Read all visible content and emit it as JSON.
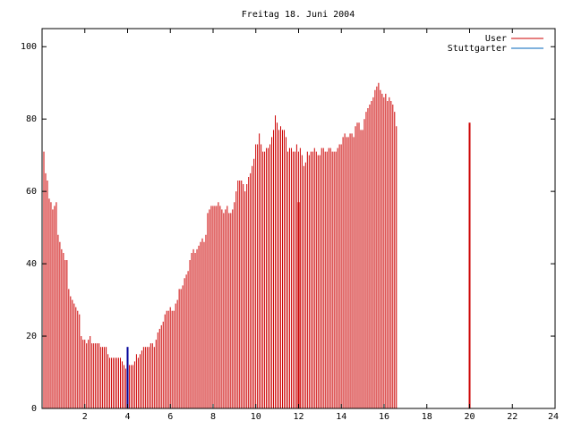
{
  "chart_data": {
    "type": "bar",
    "title": "Freitag 18. Juni 2004",
    "xlabel": "",
    "ylabel": "",
    "xlim": [
      0,
      24
    ],
    "ylim": [
      0,
      105
    ],
    "xticks": [
      2,
      4,
      6,
      8,
      10,
      12,
      14,
      16,
      18,
      20,
      22,
      24
    ],
    "xtick_labels": [
      "2",
      "4",
      "6",
      "8",
      "10",
      "12",
      "14",
      "16",
      "18",
      "20",
      "22",
      "24"
    ],
    "yticks": [
      0,
      20,
      40,
      60,
      80,
      100
    ],
    "ytick_labels": [
      "0",
      "20",
      "40",
      "60",
      "80",
      "100"
    ],
    "grid": false,
    "legend_position": "top-right",
    "series": [
      {
        "name": "User",
        "color": "#cc0000",
        "style": "impulses",
        "x_start": 0,
        "x_step": 0.0833,
        "values": [
          73,
          71,
          65,
          63,
          58,
          57,
          55,
          56,
          57,
          48,
          46,
          44,
          43,
          41,
          41,
          33,
          31,
          30,
          29,
          28,
          27,
          26,
          20,
          19,
          19,
          18,
          19,
          20,
          18,
          18,
          18,
          18,
          18,
          17,
          17,
          17,
          17,
          15,
          14,
          14,
          14,
          14,
          14,
          14,
          14,
          13,
          12,
          11,
          12,
          12,
          12,
          12,
          13,
          15,
          14,
          15,
          16,
          17,
          17,
          17,
          17,
          18,
          18,
          17,
          19,
          21,
          22,
          23,
          24,
          26,
          27,
          27,
          28,
          27,
          27,
          29,
          30,
          33,
          33,
          34,
          36,
          37,
          38,
          41,
          43,
          44,
          43,
          44,
          45,
          46,
          47,
          46,
          48,
          54,
          55,
          56,
          56,
          56,
          56,
          57,
          56,
          55,
          54,
          55,
          56,
          54,
          54,
          55,
          57,
          60,
          63,
          63,
          63,
          62,
          60,
          62,
          64,
          65,
          67,
          69,
          73,
          73,
          76,
          73,
          71,
          71,
          72,
          72,
          73,
          75,
          77,
          81,
          79,
          77,
          78,
          77,
          77,
          75,
          71,
          72,
          72,
          71,
          71,
          73,
          71,
          72,
          70,
          67,
          68,
          71,
          70,
          71,
          71,
          72,
          71,
          70,
          70,
          72,
          72,
          71,
          71,
          72,
          72,
          71,
          71,
          71,
          72,
          73,
          73,
          75,
          76,
          75,
          75,
          76,
          76,
          75,
          78,
          79,
          79,
          77,
          77,
          80,
          82,
          83,
          84,
          85,
          86,
          88,
          89,
          90,
          88,
          87,
          86,
          87,
          85,
          86,
          85,
          84,
          82,
          78
        ]
      },
      {
        "name": "Stuttgarter",
        "color": "#0066bb",
        "style": "impulses",
        "x_start": 0,
        "x_step": 0.0833,
        "values": [
          0,
          0,
          0,
          0,
          0,
          0,
          0,
          0,
          0,
          0,
          0,
          0,
          0,
          0,
          0,
          0,
          0,
          0,
          0,
          0,
          0,
          0,
          0,
          0,
          0,
          0,
          0,
          0,
          0,
          0,
          0,
          0,
          0,
          0,
          0,
          0,
          0,
          0,
          0,
          0,
          0,
          0,
          0,
          0,
          0,
          0,
          0,
          0,
          0,
          0,
          0,
          0,
          0,
          0,
          0,
          0,
          0,
          0,
          0,
          0,
          0,
          0,
          0,
          0,
          0,
          0,
          0,
          0,
          0,
          0,
          0,
          0,
          0,
          0,
          0,
          0,
          0,
          0,
          0,
          0,
          0,
          0,
          0,
          0,
          0,
          0,
          0,
          0,
          0,
          0,
          0,
          0,
          0,
          0,
          0,
          0,
          0,
          0,
          0,
          0,
          0,
          0,
          0,
          0,
          0,
          0,
          0,
          0,
          0,
          0,
          0,
          0,
          0,
          0,
          0,
          0,
          0,
          0,
          0,
          0,
          0,
          0,
          0,
          0,
          0,
          0,
          0,
          0,
          0,
          0,
          0,
          0,
          0,
          0,
          0,
          0,
          0,
          0,
          0,
          0,
          0,
          0,
          0,
          0,
          0,
          0,
          0,
          0,
          0,
          0,
          0,
          0,
          0,
          0,
          0,
          0,
          0,
          0,
          0,
          0,
          0,
          0,
          0,
          0,
          0,
          0,
          0,
          0,
          0,
          0,
          0,
          0,
          0,
          0,
          0,
          0,
          0,
          0,
          0,
          0,
          0,
          0,
          0,
          0,
          0,
          0,
          0,
          0,
          0,
          0,
          0,
          0,
          0,
          0,
          0,
          0,
          0,
          0,
          0,
          0
        ]
      }
    ],
    "markers": [
      {
        "x": 12,
        "value": 57,
        "color": "#cc0000"
      },
      {
        "x": 20,
        "value": 79,
        "color": "#cc0000"
      },
      {
        "x": 4,
        "value": 17,
        "color": "#000099"
      }
    ]
  }
}
